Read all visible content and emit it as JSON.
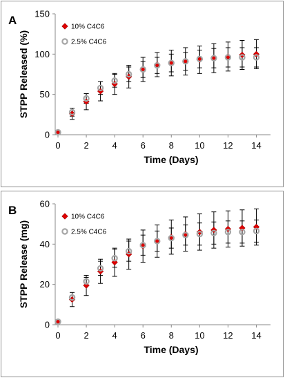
{
  "chart_data": [
    {
      "panel_label": "A",
      "type": "scatter",
      "xlabel": "Time (Days)",
      "ylabel": "STPP Released (%)",
      "xlim": [
        0,
        15
      ],
      "ylim": [
        0,
        150
      ],
      "xticks": [
        0,
        2,
        4,
        6,
        8,
        10,
        12,
        14
      ],
      "yticks": [
        0,
        50,
        100,
        150
      ],
      "grid": false,
      "legend_position": "top-left",
      "series": [
        {
          "name": "10% C4C6",
          "marker": "diamond",
          "color": "#e00000",
          "x": [
            0,
            1,
            2,
            3,
            4,
            5,
            6,
            7,
            8,
            9,
            10,
            11,
            12,
            13,
            14
          ],
          "y": [
            3,
            26,
            41,
            54,
            63,
            72,
            81,
            87,
            89,
            91,
            93,
            95,
            97,
            99,
            100
          ],
          "err": [
            2,
            7,
            10,
            12,
            13,
            14,
            15,
            15,
            16,
            17,
            17,
            18,
            18,
            18,
            18
          ]
        },
        {
          "name": "2.5% C4C6",
          "marker": "circle",
          "color": "#a6a6a6",
          "x": [
            0,
            1,
            2,
            3,
            4,
            5,
            6,
            7,
            8,
            9,
            10,
            11,
            12,
            13,
            14
          ],
          "y": [
            3,
            28,
            45,
            58,
            67,
            75,
            81,
            86,
            89,
            91,
            94,
            95,
            96,
            96,
            96
          ],
          "err": [
            2,
            5,
            6,
            8,
            8,
            9,
            10,
            10,
            11,
            11,
            11,
            12,
            12,
            12,
            12
          ]
        }
      ]
    },
    {
      "panel_label": "B",
      "type": "scatter",
      "xlabel": "Time (Days)",
      "ylabel": "STPP Release (mg)",
      "xlim": [
        0,
        15
      ],
      "ylim": [
        0,
        60
      ],
      "xticks": [
        0,
        2,
        4,
        6,
        8,
        10,
        12,
        14
      ],
      "yticks": [
        0,
        20,
        40,
        60
      ],
      "grid": false,
      "legend_position": "top-left",
      "series": [
        {
          "name": "10% C4C6",
          "marker": "diamond",
          "color": "#e00000",
          "x": [
            0,
            1,
            2,
            3,
            4,
            5,
            6,
            7,
            8,
            9,
            10,
            11,
            12,
            13,
            14
          ],
          "y": [
            1.5,
            12.5,
            19.5,
            26.5,
            31,
            35,
            39,
            41.5,
            43.5,
            45,
            46,
            47,
            47.5,
            48,
            48.5
          ],
          "err": [
            0.5,
            3.5,
            5,
            6,
            7,
            7.5,
            8,
            8,
            8.5,
            8.5,
            9,
            9,
            9,
            9,
            9
          ]
        },
        {
          "name": "2.5% C4C6",
          "marker": "circle",
          "color": "#a6a6a6",
          "x": [
            0,
            1,
            2,
            3,
            4,
            5,
            6,
            7,
            8,
            9,
            10,
            11,
            12,
            13,
            14
          ],
          "y": [
            1.5,
            13.5,
            21.5,
            28,
            33,
            36.5,
            39.5,
            41.5,
            43,
            44.5,
            45,
            45.5,
            46,
            46,
            46.5
          ],
          "err": [
            0.5,
            1,
            2,
            3.5,
            4.5,
            5,
            5,
            5,
            5,
            5,
            5.5,
            5.5,
            5.5,
            5.5,
            5.5
          ]
        }
      ]
    }
  ]
}
